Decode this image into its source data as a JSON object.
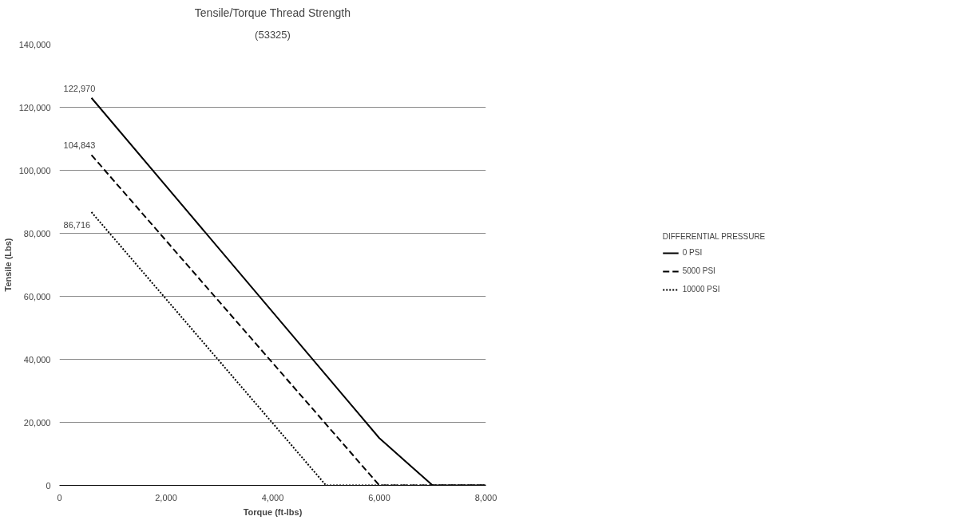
{
  "chart_data": {
    "type": "line",
    "title": "Tensile/Torque Thread Strength",
    "subtitle": "(53325)",
    "xlabel": "Torque (ft-lbs)",
    "ylabel": "Tensile (Lbs)",
    "legend_title": "DIFFERENTIAL PRESSURE",
    "xlim": [
      0,
      8000
    ],
    "ylim": [
      0,
      140000
    ],
    "xticks": [
      0,
      {
        "value": 2000,
        "label": "2,000"
      },
      {
        "value": 4000,
        "label": "4,000"
      },
      {
        "value": 6000,
        "label": "6,000"
      },
      {
        "value": 8000,
        "label": "8,000"
      }
    ],
    "yticks": [
      0,
      {
        "value": 20000,
        "label": "20,000"
      },
      {
        "value": 40000,
        "label": "40,000"
      },
      {
        "value": 60000,
        "label": "60,000"
      },
      {
        "value": 80000,
        "label": "80,000"
      },
      {
        "value": 100000,
        "label": "100,000"
      },
      {
        "value": 120000,
        "label": "120,000"
      },
      {
        "value": 140000,
        "label": "140,000"
      }
    ],
    "grid": "y",
    "legend": "right",
    "marker": "none",
    "series": [
      {
        "name": "0 PSI",
        "color": "#000000",
        "line_style": "solid",
        "x": [
          600,
          6000,
          7000,
          8000
        ],
        "values": [
          122970,
          15000,
          0,
          0
        ],
        "value_labels": [
          "122,970",
          null,
          null,
          null
        ]
      },
      {
        "name": "5000 PSI",
        "color": "#000000",
        "line_style": "dashed",
        "x": [
          600,
          6000,
          8000
        ],
        "values": [
          104843,
          0,
          0
        ],
        "value_labels": [
          "104,843",
          null,
          null
        ]
      },
      {
        "name": "10000 PSI",
        "color": "#000000",
        "line_style": "dotted",
        "x": [
          600,
          5000,
          8000
        ],
        "values": [
          86716,
          0,
          0
        ],
        "value_labels": [
          "86,716",
          null,
          null
        ]
      }
    ]
  }
}
